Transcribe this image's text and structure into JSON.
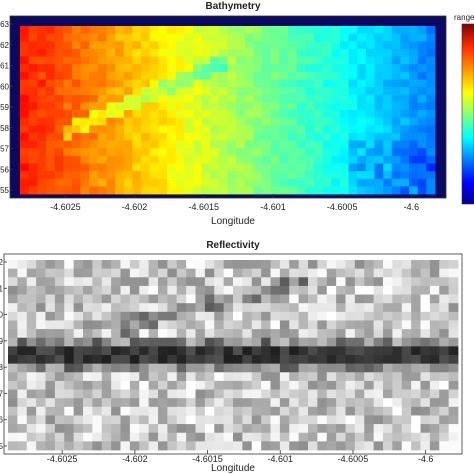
{
  "chart_data": [
    {
      "type": "heatmap",
      "title": "Bathymetry",
      "xlabel": "Longitude",
      "ylabel": "",
      "xlim": [
        -4.6029,
        -4.59975
      ],
      "x_ticks": [
        -4.6025,
        -4.602,
        -4.6015,
        -4.601,
        -4.6005,
        -4.6
      ],
      "x_tick_labels": [
        "-4.6025",
        "-4.602",
        "-4.6015",
        "-4.601",
        "-4.6005",
        "-4.6"
      ],
      "y_tick_labels": [
        "63",
        "62",
        "61",
        "60",
        "59",
        "58",
        "57",
        "56",
        "55"
      ],
      "colorbar": {
        "label": "range",
        "colormap": "jet",
        "colors": [
          "#00008f",
          "#0000ff",
          "#00ffff",
          "#ffff00",
          "#ff7f00",
          "#800000"
        ]
      },
      "pattern": {
        "gradient": "high on the west (left) side, decreasing eastward",
        "left_value": 0.85,
        "right_value": 0.25,
        "ridge_from": [
          -4.6026,
          0.35
        ],
        "ridge_to": [
          -4.6013,
          0.8
        ]
      },
      "grid": false,
      "legend": "right"
    },
    {
      "type": "heatmap",
      "title": "Reflectivity",
      "xlabel": "Longitude",
      "ylabel": "",
      "xlim": [
        -4.6029,
        -4.59975
      ],
      "x_ticks": [
        -4.6025,
        -4.602,
        -4.6015,
        -4.601,
        -4.6005,
        -4.6
      ],
      "x_tick_labels": [
        "-4.6025",
        "-4.602",
        "-4.6015",
        "-4.601",
        "-4.6005",
        "-4.6"
      ],
      "y_tick_labels": [
        "2",
        "1",
        "0",
        "9",
        "8",
        "7",
        "6",
        "5"
      ],
      "colormap": "gray",
      "pattern": {
        "dark_band_level": 0.5,
        "faint_ridge_from": [
          -4.6021,
          0.65
        ],
        "faint_ridge_to": [
          -4.6008,
          0.88
        ]
      },
      "grid": false
    }
  ],
  "colors": {
    "mask": "#0a0a64",
    "axis": "#333333"
  }
}
